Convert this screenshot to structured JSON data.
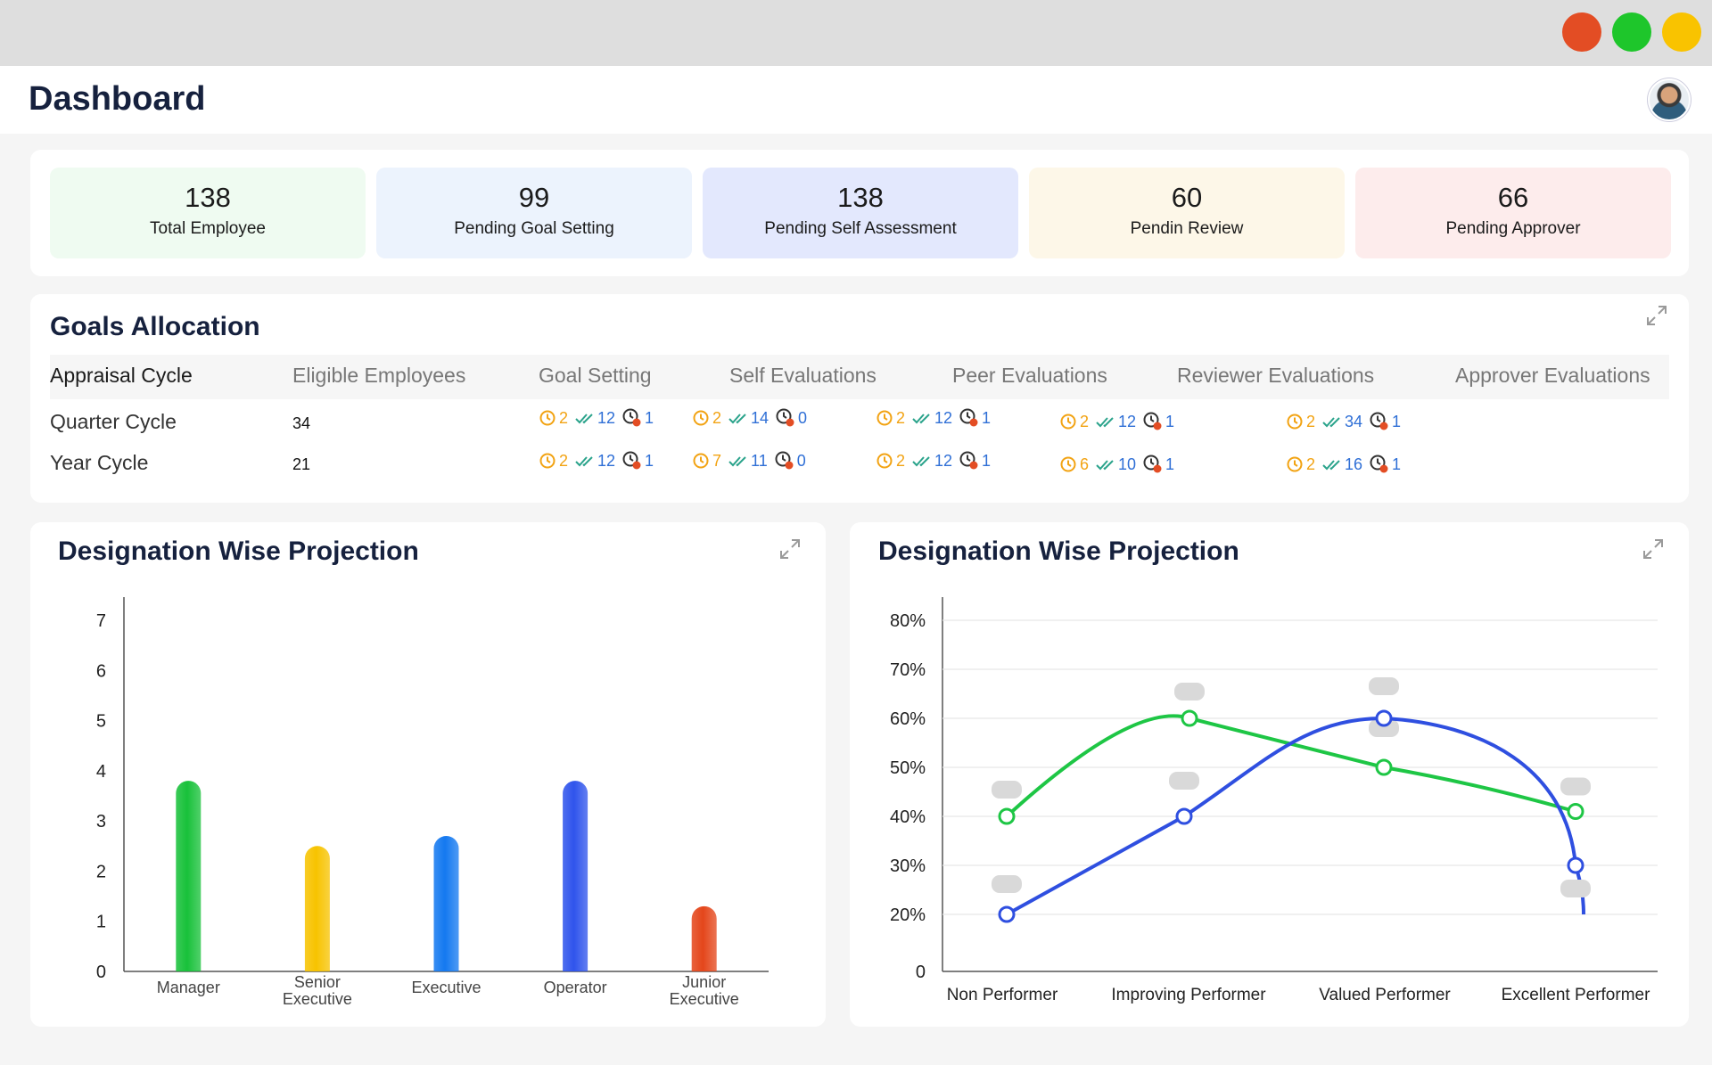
{
  "window": {
    "controls": [
      "close",
      "maximize",
      "minimize"
    ]
  },
  "header": {
    "title": "Dashboard",
    "avatar": "user-avatar"
  },
  "stats": [
    {
      "value": "138",
      "label": "Total Employee",
      "color": "#effbf1"
    },
    {
      "value": "99",
      "label": "Pending Goal Setting",
      "color": "#ecf3fd"
    },
    {
      "value": "138",
      "label": "Pending Self Assessment",
      "color": "#e3e8fd"
    },
    {
      "value": "60",
      "label": "Pendin Review",
      "color": "#fdf7e8"
    },
    {
      "value": "66",
      "label": "Pending Approver",
      "color": "#fdecec"
    }
  ],
  "goals": {
    "title": "Goals Allocation",
    "columns": [
      "Appraisal Cycle",
      "Eligible Employees",
      "Goal Setting",
      "Self Evaluations",
      "Peer Evaluations",
      "Reviewer Evaluations",
      "Approver Evaluations"
    ],
    "rows": [
      {
        "cycle": "Quarter Cycle",
        "eligible": "34",
        "stages": [
          {
            "pending": "2",
            "done": "12",
            "rejected": "1"
          },
          {
            "pending": "2",
            "done": "14",
            "rejected": "0"
          },
          {
            "pending": "2",
            "done": "12",
            "rejected": "1"
          },
          {
            "pending": "2",
            "done": "12",
            "rejected": "1"
          },
          {
            "pending": "2",
            "done": "34",
            "rejected": "1"
          }
        ]
      },
      {
        "cycle": "Year Cycle",
        "eligible": "21",
        "stages": [
          {
            "pending": "2",
            "done": "12",
            "rejected": "1"
          },
          {
            "pending": "7",
            "done": "11",
            "rejected": "0"
          },
          {
            "pending": "2",
            "done": "12",
            "rejected": "1"
          },
          {
            "pending": "6",
            "done": "10",
            "rejected": "1"
          },
          {
            "pending": "2",
            "done": "16",
            "rejected": "1"
          }
        ]
      }
    ],
    "status_icons": [
      "clock-icon",
      "double-check-icon",
      "clock-x-icon"
    ],
    "status_colors": {
      "pending": "#f2a313",
      "done": "#2f6fd6",
      "rejected": "#e34d24"
    }
  },
  "chart_data": [
    {
      "type": "bar",
      "title": "Designation Wise Projection",
      "categories": [
        [
          "Manager"
        ],
        [
          "Senior",
          "Executive"
        ],
        [
          "Executive"
        ],
        [
          "Operator"
        ],
        [
          "Junior",
          "Executive"
        ]
      ],
      "values": [
        3.8,
        2.5,
        2.7,
        3.8,
        1.3
      ],
      "colors": [
        "#18c13a",
        "#f7c300",
        "#1479f0",
        "#2f54ec",
        "#e4461b"
      ],
      "yticks": [
        "0",
        "1",
        "2",
        "3",
        "4",
        "5",
        "6",
        "7"
      ],
      "ylim": [
        0,
        7
      ],
      "grid": false
    },
    {
      "type": "line",
      "title": "Designation Wise Projection",
      "categories": [
        "Non Performer",
        "Improving Performer",
        "Valued Performer",
        "Excellent Performer"
      ],
      "yticks": [
        "0",
        "20%",
        "30%",
        "40%",
        "50%",
        "60%",
        "70%",
        "80%"
      ],
      "ylim": [
        0,
        80
      ],
      "grid": true,
      "series": [
        {
          "color": "#1ec645",
          "values": [
            40,
            60,
            50,
            41
          ]
        },
        {
          "color": "#2f4fe0",
          "values": [
            20,
            40,
            60,
            30
          ],
          "tail": 20
        }
      ]
    }
  ]
}
